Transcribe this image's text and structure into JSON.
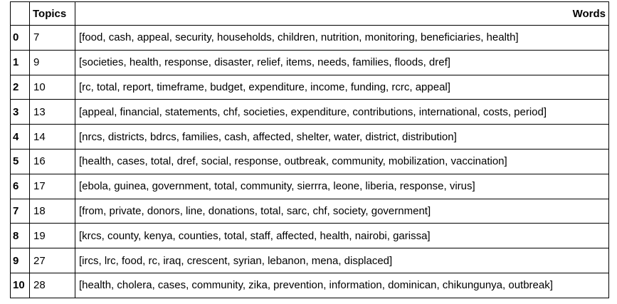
{
  "table": {
    "columns": {
      "index": "",
      "topics": "Topics",
      "words": "Words"
    },
    "rows": [
      {
        "index": "0",
        "topic": "7",
        "words": "[food, cash, appeal, security, households, children, nutrition, monitoring, beneficiaries, health]"
      },
      {
        "index": "1",
        "topic": "9",
        "words": "[societies, health, response, disaster, relief, items, needs, families, floods, dref]"
      },
      {
        "index": "2",
        "topic": "10",
        "words": "[rc, total, report, timeframe, budget, expenditure, income, funding, rcrc, appeal]"
      },
      {
        "index": "3",
        "topic": "13",
        "words": "[appeal, financial, statements, chf, societies, expenditure, contributions, international, costs, period]"
      },
      {
        "index": "4",
        "topic": "14",
        "words": "[nrcs, districts, bdrcs, families, cash, affected, shelter, water, district, distribution]"
      },
      {
        "index": "5",
        "topic": "16",
        "words": "[health, cases, total, dref, social, response, outbreak, community, mobilization, vaccination]"
      },
      {
        "index": "6",
        "topic": "17",
        "words": "[ebola, guinea, government, total, community, sierrra, leone, liberia, response, virus]"
      },
      {
        "index": "7",
        "topic": "18",
        "words": "[from, private, donors, line, donations, total, sarc, chf, society, government]"
      },
      {
        "index": "8",
        "topic": "19",
        "words": "[krcs, county, kenya, counties, total, staff, affected, health, nairobi, garissa]"
      },
      {
        "index": "9",
        "topic": "27",
        "words": "[ircs, lrc, food, rc, iraq, crescent, syrian, lebanon, mena, displaced]"
      },
      {
        "index": "10",
        "topic": "28",
        "words": "[health, cholera, cases, community, zika, prevention, information, dominican, chikungunya, outbreak]"
      }
    ]
  }
}
